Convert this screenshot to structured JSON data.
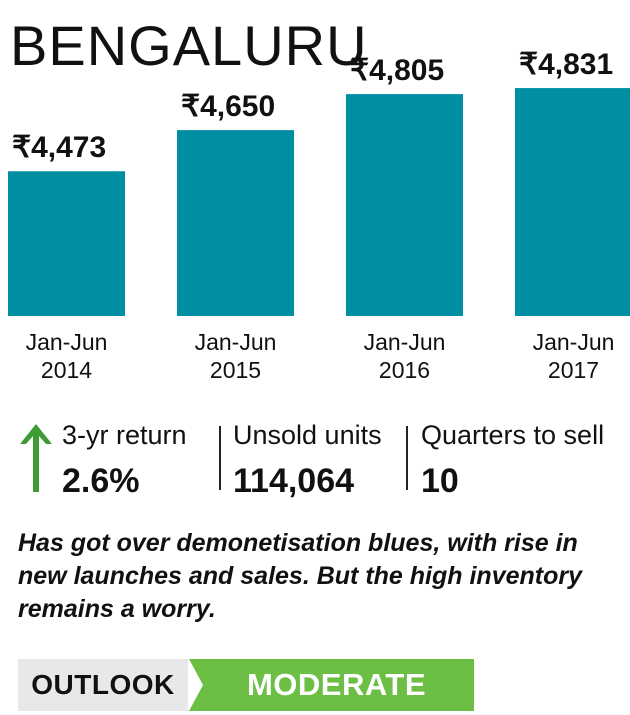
{
  "colors": {
    "bar": "#008fa2",
    "up_arrow": "#3f9c35",
    "outlook_bg": "#e8e8ea",
    "outlook_value_bg": "#6cbe45"
  },
  "chart_data": {
    "type": "bar",
    "title": "BENGALURU",
    "categories": [
      [
        "Jan-Jun",
        "2014"
      ],
      [
        "Jan-Jun",
        "2015"
      ],
      [
        "Jan-Jun",
        "2016"
      ],
      [
        "Jan-Jun",
        "2017"
      ]
    ],
    "values": [
      4473,
      4650,
      4805,
      4831
    ],
    "value_labels": [
      "₹4,473",
      "₹4,650",
      "₹4,805",
      "₹4,831"
    ],
    "ylim": [
      3850,
      4870
    ],
    "grid": false,
    "legend": "none"
  },
  "stats": [
    {
      "label": "3-yr return",
      "value": "2.6%",
      "icon": "up-arrow-icon"
    },
    {
      "label": "Unsold units",
      "value": "114,064"
    },
    {
      "label": "Quarters to sell",
      "value": "10"
    }
  ],
  "summary": "Has got over demonetisation blues, with rise in new launches and sales. But the high inventory remains a worry.",
  "outlook": {
    "label": "OUTLOOK",
    "value": "MODERATE"
  }
}
